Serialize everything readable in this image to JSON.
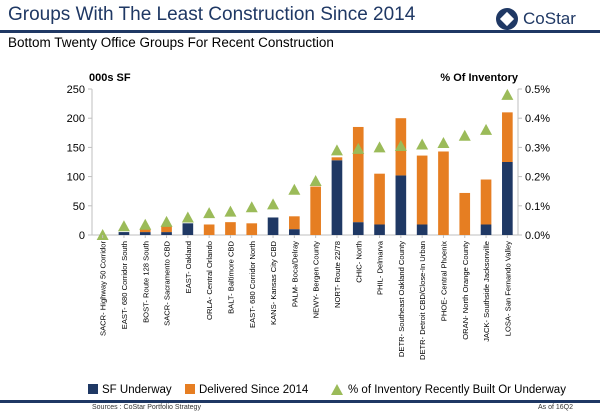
{
  "header": {
    "title": "Groups With The Least Construction Since 2014",
    "subtitle": "Bottom Twenty Office Groups For Recent Construction",
    "logo_text": "CoStar"
  },
  "footer": {
    "source": "Sources : CoStar Portfolio Strategy",
    "as_of": "As of 16Q2"
  },
  "colors": {
    "underway": "#1f3864",
    "delivered": "#e67e22",
    "inventory": "#9bbb59",
    "brand": "#1f3864"
  },
  "chart_data": {
    "type": "bar",
    "stacked": true,
    "left_axis_label": "000s SF",
    "right_axis_label": "% Of Inventory",
    "ylim": [
      0,
      250
    ],
    "yticks": [
      0,
      50,
      100,
      150,
      200,
      250
    ],
    "y2lim": [
      0,
      0.5
    ],
    "y2ticks": [
      "0.0%",
      "0.1%",
      "0.2%",
      "0.3%",
      "0.4%",
      "0.5%"
    ],
    "categories": [
      "SACR- Highway 50 Corridor",
      "EAST- 680 Corridor South",
      "BOST- Route 128 South",
      "SACR- Sacramento CBD",
      "EAST- Oakland",
      "ORLA- Central Orlando",
      "BALT- Baltimore CBD",
      "EAST- 680 Corridor North",
      "KANS- Kansas City CBD",
      "PALM- Boca/Delray",
      "NEWY- Bergen County",
      "NORT- Route 22/78",
      "CHIC- North",
      "PHIL- Delmarva",
      "DETR- Southeast Oakland County",
      "DETR- Detroit CBD/Close-In Urban",
      "PHOE- Central Phoenix",
      "ORAN- North Orange County",
      "JACK- Southside Jacksonville",
      "LOSA- San Fernando Valley"
    ],
    "series": [
      {
        "name": "SF Underway",
        "kind": "bar",
        "values": [
          0,
          5,
          5,
          5,
          20,
          0,
          0,
          0,
          30,
          10,
          0,
          128,
          22,
          18,
          102,
          18,
          0,
          0,
          18,
          125
        ]
      },
      {
        "name": "Delivered Since 2014",
        "kind": "bar",
        "values": [
          0,
          0,
          5,
          10,
          0,
          18,
          22,
          20,
          0,
          22,
          83,
          5,
          163,
          87,
          98,
          118,
          143,
          72,
          77,
          85
        ]
      },
      {
        "name": "% of Inventory Recently Built Or Underway",
        "kind": "marker",
        "axis": "right",
        "values": [
          0.0,
          0.03,
          0.035,
          0.045,
          0.06,
          0.075,
          0.08,
          0.095,
          0.105,
          0.155,
          0.185,
          0.29,
          0.295,
          0.3,
          0.305,
          0.31,
          0.315,
          0.34,
          0.36,
          0.48
        ]
      }
    ]
  }
}
